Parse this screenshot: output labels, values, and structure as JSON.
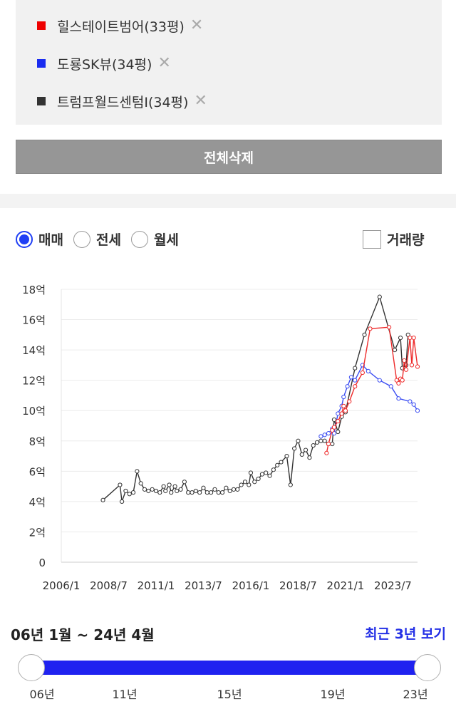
{
  "legend": {
    "items": [
      {
        "label": "힐스테이트범어(33평)",
        "color": "#ee0000"
      },
      {
        "label": "도룡SK뷰(34평)",
        "color": "#1a2cf0"
      },
      {
        "label": "트럼프월드센텀I(34평)",
        "color": "#333333"
      }
    ],
    "remove_icon": "close-icon",
    "remove_glyph": "✕"
  },
  "delete_all_label": "전체삭제",
  "trade_types": [
    {
      "label": "매매",
      "selected": true
    },
    {
      "label": "전세",
      "selected": false
    },
    {
      "label": "월세",
      "selected": false
    }
  ],
  "volume_toggle": {
    "label": "거래량",
    "checked": false
  },
  "chart_data": {
    "type": "line",
    "y_ticks": [
      "0",
      "2억",
      "4억",
      "6억",
      "8억",
      "10억",
      "12억",
      "14억",
      "16억",
      "18억"
    ],
    "ylim": [
      0,
      18
    ],
    "x_ticks": [
      "2006/1",
      "2008/7",
      "2011/1",
      "2013/7",
      "2016/1",
      "2018/7",
      "2021/1",
      "2023/7"
    ],
    "xlim": [
      2006.0,
      2024.8
    ],
    "grid": true,
    "series": [
      {
        "name": "트럼프월드센텀I(34평)",
        "color": "#333333",
        "points": [
          [
            2008.2,
            4.1
          ],
          [
            2009.1,
            5.1
          ],
          [
            2009.2,
            4.0
          ],
          [
            2009.4,
            4.7
          ],
          [
            2009.6,
            4.5
          ],
          [
            2009.8,
            4.6
          ],
          [
            2010.0,
            6.0
          ],
          [
            2010.2,
            5.2
          ],
          [
            2010.4,
            4.8
          ],
          [
            2010.6,
            4.7
          ],
          [
            2010.8,
            4.8
          ],
          [
            2011.0,
            4.7
          ],
          [
            2011.2,
            4.6
          ],
          [
            2011.4,
            5.0
          ],
          [
            2011.5,
            4.7
          ],
          [
            2011.7,
            5.1
          ],
          [
            2011.8,
            4.6
          ],
          [
            2012.0,
            5.0
          ],
          [
            2012.1,
            4.7
          ],
          [
            2012.3,
            4.8
          ],
          [
            2012.5,
            5.3
          ],
          [
            2012.7,
            4.6
          ],
          [
            2012.9,
            4.6
          ],
          [
            2013.1,
            4.7
          ],
          [
            2013.3,
            4.6
          ],
          [
            2013.5,
            4.9
          ],
          [
            2013.7,
            4.6
          ],
          [
            2013.9,
            4.6
          ],
          [
            2014.1,
            4.8
          ],
          [
            2014.3,
            4.6
          ],
          [
            2014.5,
            4.6
          ],
          [
            2014.7,
            4.9
          ],
          [
            2014.9,
            4.7
          ],
          [
            2015.1,
            4.8
          ],
          [
            2015.3,
            4.8
          ],
          [
            2015.5,
            5.1
          ],
          [
            2015.7,
            5.3
          ],
          [
            2015.9,
            5.1
          ],
          [
            2016.0,
            5.9
          ],
          [
            2016.2,
            5.3
          ],
          [
            2016.4,
            5.5
          ],
          [
            2016.6,
            5.8
          ],
          [
            2016.8,
            5.9
          ],
          [
            2017.0,
            5.7
          ],
          [
            2017.2,
            6.1
          ],
          [
            2017.4,
            6.4
          ],
          [
            2017.6,
            6.6
          ],
          [
            2017.9,
            7.0
          ],
          [
            2018.1,
            5.1
          ],
          [
            2018.3,
            7.5
          ],
          [
            2018.5,
            8.0
          ],
          [
            2018.7,
            7.1
          ],
          [
            2018.9,
            7.4
          ],
          [
            2019.1,
            6.9
          ],
          [
            2019.3,
            7.7
          ],
          [
            2019.5,
            7.9
          ],
          [
            2019.7,
            8.0
          ],
          [
            2019.9,
            8.0
          ],
          [
            2020.1,
            7.8
          ],
          [
            2020.3,
            7.8
          ],
          [
            2020.4,
            9.4
          ],
          [
            2020.6,
            8.6
          ],
          [
            2020.8,
            9.6
          ],
          [
            2021.0,
            9.9
          ],
          [
            2021.5,
            12.8
          ],
          [
            2022.0,
            15.0
          ],
          [
            2022.8,
            17.5
          ],
          [
            2023.6,
            14.0
          ],
          [
            2023.9,
            14.8
          ],
          [
            2024.0,
            12.8
          ],
          [
            2024.2,
            13.0
          ],
          [
            2024.3,
            15.0
          ]
        ]
      },
      {
        "name": "도룡SK뷰(34평)",
        "color": "#3a4cf2",
        "points": [
          [
            2019.7,
            8.3
          ],
          [
            2019.9,
            8.4
          ],
          [
            2020.1,
            8.5
          ],
          [
            2020.3,
            8.8
          ],
          [
            2020.4,
            8.5
          ],
          [
            2020.6,
            9.8
          ],
          [
            2020.8,
            10.3
          ],
          [
            2020.9,
            10.9
          ],
          [
            2021.1,
            11.6
          ],
          [
            2021.3,
            12.2
          ],
          [
            2021.5,
            12.0
          ],
          [
            2021.9,
            13.0
          ],
          [
            2022.2,
            12.6
          ],
          [
            2022.8,
            12.0
          ],
          [
            2023.4,
            11.6
          ],
          [
            2023.8,
            10.8
          ],
          [
            2024.4,
            10.6
          ],
          [
            2024.6,
            10.4
          ],
          [
            2024.8,
            10.0
          ]
        ]
      },
      {
        "name": "힐스테이트범어(33평)",
        "color": "#ee2a2a",
        "points": [
          [
            2020.0,
            7.2
          ],
          [
            2020.1,
            7.8
          ],
          [
            2020.3,
            8.7
          ],
          [
            2020.4,
            8.9
          ],
          [
            2020.6,
            9.3
          ],
          [
            2020.8,
            9.8
          ],
          [
            2020.9,
            10.3
          ],
          [
            2021.0,
            10.0
          ],
          [
            2021.2,
            10.6
          ],
          [
            2021.5,
            11.6
          ],
          [
            2021.9,
            12.5
          ],
          [
            2022.3,
            15.4
          ],
          [
            2023.3,
            15.5
          ],
          [
            2023.7,
            12.0
          ],
          [
            2023.8,
            11.8
          ],
          [
            2023.9,
            12.1
          ],
          [
            2024.0,
            12.0
          ],
          [
            2024.1,
            13.3
          ],
          [
            2024.2,
            12.7
          ],
          [
            2024.4,
            14.8
          ],
          [
            2024.5,
            13.0
          ],
          [
            2024.6,
            14.8
          ],
          [
            2024.8,
            12.9
          ]
        ]
      }
    ]
  },
  "period_label": "06년 1월 ~ 24년 4월",
  "recent_3y_label": "최근 3년 보기",
  "slider_ticks": [
    "06년",
    "11년",
    "15년",
    "19년",
    "23년"
  ]
}
